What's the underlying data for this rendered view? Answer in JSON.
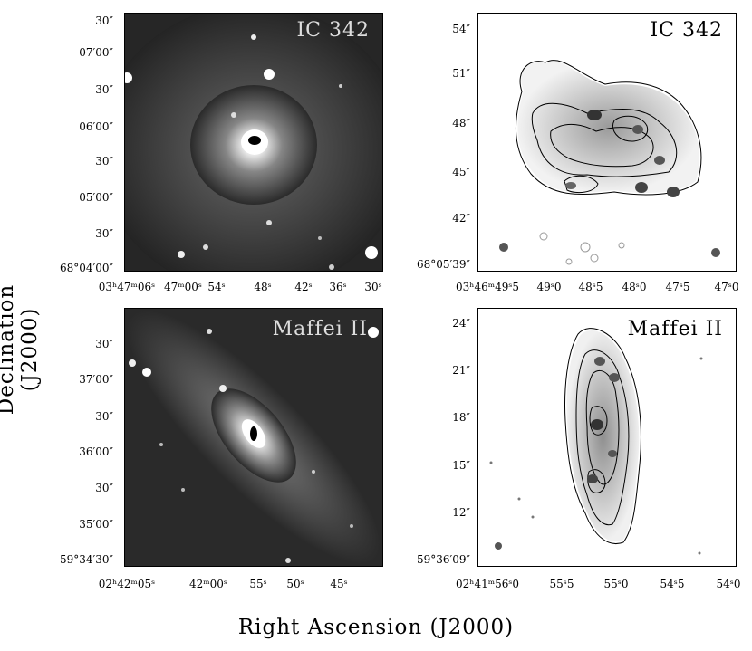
{
  "axes": {
    "ylabel": "Declination (J2000)",
    "xlabel": "Right Ascension (J2000)"
  },
  "panels": {
    "ic342_image": {
      "title": "IC 342",
      "yticks": [
        "30″",
        "07′00″",
        "30″",
        "06′00″",
        "30″",
        "05′00″",
        "30″",
        "68°04′00″"
      ],
      "xticks": [
        "03ʰ47ᵐ06ˢ",
        "47ᵐ00ˢ",
        "54ˢ",
        "48ˢ",
        "42ˢ",
        "36ˢ",
        "30ˢ"
      ]
    },
    "ic342_map": {
      "title": "IC 342",
      "yticks": [
        "54″",
        "51″",
        "48″",
        "45″",
        "42″",
        "68°05′39″"
      ],
      "xticks": [
        "03ʰ46ᵐ49ˢ5",
        "49ˢ0",
        "48ˢ5",
        "48ˢ0",
        "47ˢ5",
        "47ˢ0"
      ]
    },
    "maffei_image": {
      "title": "Maffei II",
      "yticks": [
        "30″",
        "37′00″",
        "30″",
        "36′00″",
        "30″",
        "35′00″",
        "59°34′30″"
      ],
      "xticks": [
        "02ʰ42ᵐ05ˢ",
        "42ᵐ00ˢ",
        "55ˢ",
        "50ˢ",
        "45ˢ"
      ]
    },
    "maffei_map": {
      "title": "Maffei II",
      "yticks": [
        "24″",
        "21″",
        "18″",
        "15″",
        "12″",
        "59°36′09″"
      ],
      "xticks": [
        "02ʰ41ᵐ56ˢ0",
        "55ˢ5",
        "55ˢ0",
        "54ˢ5",
        "54ˢ0"
      ]
    }
  }
}
